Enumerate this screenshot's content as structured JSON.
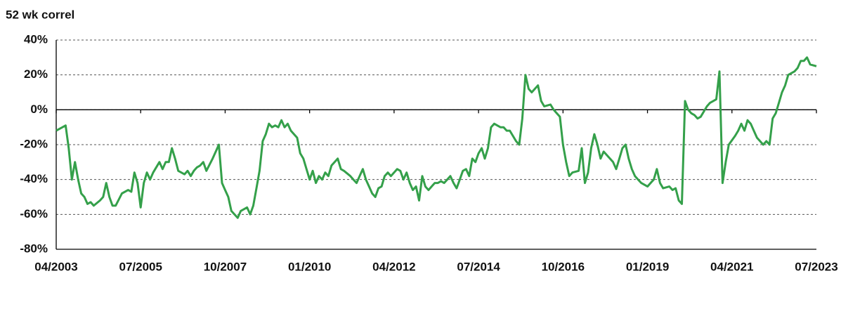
{
  "chart_data": {
    "type": "line",
    "title": "52 wk correl",
    "ylim": [
      -80,
      40
    ],
    "yticks": [
      {
        "value": 40,
        "label": "40%"
      },
      {
        "value": 20,
        "label": "20%"
      },
      {
        "value": 0,
        "label": "0%"
      },
      {
        "value": -20,
        "label": "-20%"
      },
      {
        "value": -40,
        "label": "-40%"
      },
      {
        "value": -60,
        "label": "-60%"
      },
      {
        "value": -80,
        "label": "-80%"
      }
    ],
    "xlim": [
      "2003-04",
      "2023-07"
    ],
    "xticks": [
      {
        "value": "2003-04",
        "label": "04/2003"
      },
      {
        "value": "2005-07",
        "label": "07/2005"
      },
      {
        "value": "2007-10",
        "label": "10/2007"
      },
      {
        "value": "2010-01",
        "label": "01/2010"
      },
      {
        "value": "2012-04",
        "label": "04/2012"
      },
      {
        "value": "2014-07",
        "label": "07/2014"
      },
      {
        "value": "2016-10",
        "label": "10/2016"
      },
      {
        "value": "2019-01",
        "label": "01/2019"
      },
      {
        "value": "2021-04",
        "label": "04/2021"
      },
      {
        "value": "2023-07",
        "label": "07/2023"
      }
    ],
    "grid": true,
    "series": [
      {
        "color": "#34a04a",
        "x": [
          "2003-04",
          "2003-06",
          "2003-07",
          "2003-08",
          "2003-09",
          "2003-10",
          "2003-11",
          "2003-12",
          "2004-01",
          "2004-02",
          "2004-03",
          "2004-04",
          "2004-06",
          "2004-07",
          "2004-08",
          "2004-09",
          "2004-10",
          "2004-11",
          "2005-01",
          "2005-03",
          "2005-04",
          "2005-05",
          "2005-06",
          "2005-07",
          "2005-08",
          "2005-09",
          "2005-10",
          "2005-11",
          "2006-01",
          "2006-02",
          "2006-03",
          "2006-04",
          "2006-05",
          "2006-06",
          "2006-07",
          "2006-09",
          "2006-10",
          "2006-11",
          "2006-12",
          "2007-01",
          "2007-02",
          "2007-03",
          "2007-04",
          "2007-06",
          "2007-07",
          "2007-08",
          "2007-09",
          "2007-10",
          "2007-11",
          "2007-12",
          "2008-02",
          "2008-03",
          "2008-04",
          "2008-05",
          "2008-06",
          "2008-07",
          "2008-08",
          "2008-09",
          "2008-10",
          "2008-11",
          "2008-12",
          "2009-01",
          "2009-02",
          "2009-03",
          "2009-04",
          "2009-05",
          "2009-06",
          "2009-07",
          "2009-09",
          "2009-10",
          "2009-11",
          "2010-01",
          "2010-02",
          "2010-03",
          "2010-04",
          "2010-05",
          "2010-06",
          "2010-07",
          "2010-08",
          "2010-09",
          "2010-10",
          "2010-11",
          "2010-12",
          "2011-02",
          "2011-03",
          "2011-04",
          "2011-05",
          "2011-06",
          "2011-07",
          "2011-08",
          "2011-09",
          "2011-10",
          "2011-11",
          "2011-12",
          "2012-01",
          "2012-02",
          "2012-03",
          "2012-05",
          "2012-06",
          "2012-07",
          "2012-08",
          "2012-09",
          "2012-10",
          "2012-11",
          "2012-12",
          "2013-01",
          "2013-02",
          "2013-03",
          "2013-04",
          "2013-05",
          "2013-06",
          "2013-07",
          "2013-08",
          "2013-09",
          "2013-10",
          "2013-11",
          "2013-12",
          "2014-01",
          "2014-02",
          "2014-03",
          "2014-04",
          "2014-05",
          "2014-06",
          "2014-07",
          "2014-08",
          "2014-09",
          "2014-10",
          "2014-11",
          "2014-12",
          "2015-02",
          "2015-03",
          "2015-04",
          "2015-05",
          "2015-06",
          "2015-07",
          "2015-08",
          "2015-09",
          "2015-10",
          "2015-11",
          "2015-12",
          "2016-01",
          "2016-02",
          "2016-03",
          "2016-04",
          "2016-06",
          "2016-07",
          "2016-08",
          "2016-09",
          "2016-10",
          "2016-11",
          "2016-12",
          "2017-01",
          "2017-03",
          "2017-04",
          "2017-05",
          "2017-06",
          "2017-07",
          "2017-08",
          "2017-09",
          "2017-10",
          "2017-11",
          "2017-12",
          "2018-02",
          "2018-03",
          "2018-04",
          "2018-05",
          "2018-06",
          "2018-07",
          "2018-08",
          "2018-09",
          "2018-10",
          "2018-11",
          "2019-01",
          "2019-02",
          "2019-03",
          "2019-04",
          "2019-05",
          "2019-06",
          "2019-08",
          "2019-09",
          "2019-10",
          "2019-11",
          "2019-12",
          "2020-01",
          "2020-02",
          "2020-03",
          "2020-04",
          "2020-05",
          "2020-06",
          "2020-08",
          "2020-09",
          "2020-10",
          "2020-11",
          "2020-12",
          "2021-01",
          "2021-02",
          "2021-03",
          "2021-05",
          "2021-06",
          "2021-07",
          "2021-08",
          "2021-09",
          "2021-10",
          "2021-11",
          "2021-12",
          "2022-02",
          "2022-03",
          "2022-04",
          "2022-05",
          "2022-06",
          "2022-07",
          "2022-08",
          "2022-09",
          "2022-10",
          "2022-12",
          "2023-01",
          "2023-02",
          "2023-03",
          "2023-04",
          "2023-05",
          "2023-07"
        ],
        "values": [
          -12,
          -10,
          -9,
          -22,
          -40,
          -30,
          -40,
          -48,
          -50,
          -54,
          -53,
          -55,
          -52,
          -50,
          -42,
          -50,
          -55,
          -55,
          -48,
          -46,
          -47,
          -36,
          -42,
          -56,
          -42,
          -36,
          -40,
          -36,
          -30,
          -34,
          -30,
          -30,
          -22,
          -28,
          -35,
          -37,
          -35,
          -38,
          -35,
          -33,
          -32,
          -30,
          -35,
          -28,
          -24,
          -20,
          -42,
          -46,
          -50,
          -58,
          -62,
          -58,
          -57,
          -56,
          -60,
          -55,
          -45,
          -35,
          -18,
          -14,
          -8,
          -10,
          -9,
          -10,
          -6,
          -10,
          -8,
          -12,
          -16,
          -25,
          -28,
          -40,
          -35,
          -42,
          -38,
          -40,
          -36,
          -38,
          -32,
          -30,
          -28,
          -34,
          -35,
          -38,
          -40,
          -42,
          -38,
          -34,
          -40,
          -44,
          -48,
          -50,
          -45,
          -44,
          -38,
          -36,
          -38,
          -34,
          -35,
          -40,
          -36,
          -42,
          -46,
          -44,
          -52,
          -38,
          -44,
          -46,
          -44,
          -42,
          -42,
          -41,
          -42,
          -40,
          -38,
          -42,
          -45,
          -40,
          -35,
          -34,
          -38,
          -28,
          -30,
          -25,
          -22,
          -28,
          -22,
          -10,
          -8,
          -10,
          -10,
          -12,
          -12,
          -15,
          -18,
          -20,
          -5,
          20,
          12,
          10,
          12,
          14,
          5,
          2,
          3,
          0,
          -2,
          -4,
          -20,
          -30,
          -38,
          -36,
          -35,
          -22,
          -42,
          -36,
          -22,
          -14,
          -20,
          -28,
          -24,
          -26,
          -30,
          -34,
          -28,
          -22,
          -20,
          -28,
          -34,
          -38,
          -40,
          -42,
          -44,
          -42,
          -40,
          -34,
          -42,
          -45,
          -44,
          -46,
          -45,
          -52,
          -54,
          5,
          0,
          -2,
          -3,
          -5,
          -4,
          2,
          4,
          5,
          6,
          22,
          -42,
          -30,
          -20,
          -15,
          -12,
          -8,
          -12,
          -6,
          -8,
          -12,
          -16,
          -20,
          -18,
          -20,
          -5,
          -2,
          4,
          10,
          14,
          20,
          22,
          24,
          28,
          28,
          30,
          26,
          25
        ]
      }
    ]
  }
}
